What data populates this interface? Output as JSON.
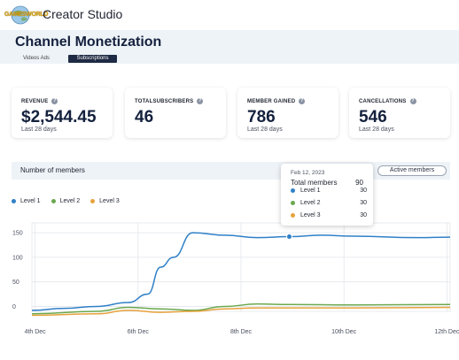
{
  "app": {
    "logo_text": "GAMESWORLD",
    "title": "Creator Studio"
  },
  "page": {
    "title": "Channel Monetization",
    "tabs": [
      {
        "label": "Videos Ads",
        "active": false
      },
      {
        "label": "Subscriptions",
        "active": true
      }
    ]
  },
  "stats": [
    {
      "label": "REVENUE",
      "value": "$2,544.45",
      "sub": "Last 28 days"
    },
    {
      "label": "TOTALSUBSCRIBERS",
      "value": "46",
      "sub": ""
    },
    {
      "label": "MEMBER GAINED",
      "value": "786",
      "sub": "Last 28 days"
    },
    {
      "label": "CANCELLATIONS",
      "value": "546",
      "sub": "Last 28 days"
    }
  ],
  "chart_section": {
    "title": "Number of members",
    "filter_button": "Active members"
  },
  "tooltip": {
    "date": "Feb 12, 2023",
    "total_label": "Total members",
    "total_value": "90",
    "rows": [
      {
        "label": "Level 1",
        "value": "30"
      },
      {
        "label": "Level 2",
        "value": "30"
      },
      {
        "label": "Level 3",
        "value": "30"
      }
    ]
  },
  "chart_data": {
    "type": "line",
    "x": [
      "4th Dec",
      "6th Dec",
      "8th Dec",
      "10th Dec",
      "12th Dec"
    ],
    "ylim": [
      -10,
      170
    ],
    "yticks": [
      0,
      50,
      100,
      150
    ],
    "grid": true,
    "legend_position": "top-left",
    "series": [
      {
        "name": "Level 1",
        "color": "#2f80c8",
        "points": [
          [
            0,
            -8
          ],
          [
            0.5,
            -4
          ],
          [
            1,
            0
          ],
          [
            1.5,
            8
          ],
          [
            1.8,
            25
          ],
          [
            2.0,
            80
          ],
          [
            2.2,
            100
          ],
          [
            2.5,
            150
          ],
          [
            3.0,
            145
          ],
          [
            3.5,
            140
          ],
          [
            4.0,
            142
          ],
          [
            4.5,
            145
          ],
          [
            5.0,
            143
          ],
          [
            6.0,
            140
          ],
          [
            6.5,
            141
          ]
        ]
      },
      {
        "name": "Level 2",
        "color": "#6aa84f",
        "points": [
          [
            0,
            -15
          ],
          [
            1.0,
            -10
          ],
          [
            1.5,
            -2
          ],
          [
            2.0,
            -5
          ],
          [
            2.5,
            -8
          ],
          [
            3.0,
            0
          ],
          [
            3.5,
            5
          ],
          [
            4.0,
            4
          ],
          [
            5.0,
            3
          ],
          [
            6.5,
            4
          ]
        ]
      },
      {
        "name": "Level 3",
        "color": "#e6a23c",
        "points": [
          [
            0,
            -18
          ],
          [
            1.0,
            -15
          ],
          [
            1.5,
            -8
          ],
          [
            2.0,
            -12
          ],
          [
            2.5,
            -10
          ],
          [
            3.0,
            -5
          ],
          [
            3.5,
            -3
          ],
          [
            4.0,
            -3
          ],
          [
            5.0,
            -3
          ],
          [
            6.5,
            -2
          ]
        ]
      }
    ],
    "highlight": {
      "series": "Level 1",
      "x": 4.0,
      "y": 142
    }
  }
}
